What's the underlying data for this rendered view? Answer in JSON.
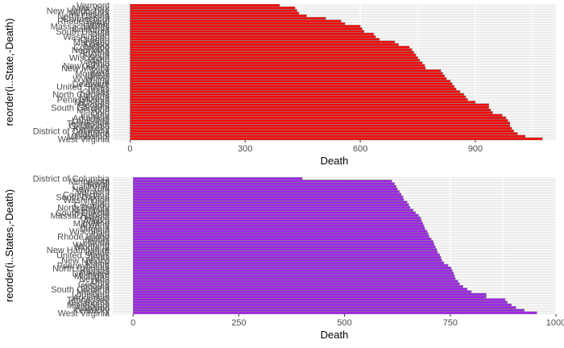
{
  "chart_data": [
    {
      "type": "bar",
      "orientation": "horizontal",
      "xlabel": "Death",
      "ylabel": "reorder(i..State,-Death)",
      "xlim": [
        -45,
        1110
      ],
      "xticks": [
        0,
        300,
        600,
        900
      ],
      "fill_color": "#FF0000",
      "outline_color": "#808080",
      "grid": true,
      "categories": [
        "West Virginia",
        "Mississippi",
        "Alabama",
        "District of Columbia",
        "Kentucky",
        "Oklahoma",
        "Tennessee",
        "Louisiana",
        "Arkansas",
        "Indiana",
        "Ohio",
        "Missouri",
        "South Carolina",
        "Georgia",
        "Michigan",
        "Pennsylvania",
        "Nevada",
        "North Carolina",
        "Kansas",
        "Texas",
        "United States",
        "Delaware",
        "Maine",
        "Wyoming",
        "Illinois",
        "Montana",
        "Iowa",
        "New Mexico",
        "New Jersey",
        "Virginia",
        "Idaho",
        "Wisconsin",
        "Florida",
        "Arizona",
        "Nebraska",
        "Colorado",
        "Alaska",
        "Maryland",
        "Oregon",
        "Washington",
        "Utah",
        "South Dakota",
        "California",
        "Massachusetts",
        "Hawaii",
        "Rhode Island",
        "Connecticut",
        "North Dakota",
        "Minnesota",
        "New Hampshire",
        "New York",
        "Vermont"
      ],
      "values": [
        1075,
        1030,
        1010,
        1000,
        995,
        990,
        990,
        985,
        980,
        970,
        945,
        940,
        935,
        935,
        900,
        880,
        875,
        870,
        860,
        850,
        845,
        840,
        835,
        825,
        820,
        815,
        810,
        770,
        768,
        762,
        755,
        750,
        745,
        740,
        735,
        728,
        700,
        690,
        650,
        640,
        635,
        610,
        605,
        600,
        560,
        550,
        510,
        460,
        440,
        435,
        430,
        390
      ]
    },
    {
      "type": "bar",
      "orientation": "horizontal",
      "xlabel": "Death",
      "ylabel": "reorder(i..States,-Death)",
      "xlim": [
        -48,
        1000
      ],
      "xticks": [
        0,
        250,
        500,
        750,
        1000
      ],
      "fill_color": "#A020F0",
      "outline_color": "#808080",
      "grid": true,
      "categories": [
        "West Virginia",
        "Kentucky",
        "Alabama",
        "Mississippi",
        "Oklahoma",
        "Tennessee",
        "Arkansas",
        "Louisiana",
        "Missouri",
        "South Carolina",
        "Indiana",
        "Georgia",
        "Ohio",
        "Nevada",
        "Michigan",
        "Delaware",
        "Kansas",
        "North Carolina",
        "Pennsylvania",
        "Maine",
        "New Mexico",
        "Texas",
        "United States",
        "Idaho",
        "New Hampshire",
        "Montana",
        "Wyoming",
        "Florida",
        "Illinois",
        "Rhode Island",
        "Iowa",
        "Wisconsin",
        "Virginia",
        "Arizona",
        "Maryland",
        "Alaska",
        "Oregon",
        "Massachusetts",
        "South Dakota",
        "Nebraska",
        "North Dakota",
        "Colorado",
        "Utah",
        "Washington",
        "South Dakota",
        "Connecticut",
        "Vermont",
        "New York",
        "California",
        "Hawaii",
        "Minnesota",
        "District of Columbia"
      ],
      "values": [
        955,
        925,
        905,
        895,
        885,
        880,
        835,
        835,
        800,
        790,
        780,
        772,
        768,
        762,
        760,
        758,
        755,
        752,
        745,
        735,
        730,
        728,
        725,
        720,
        718,
        715,
        712,
        710,
        705,
        700,
        698,
        695,
        690,
        688,
        685,
        682,
        680,
        675,
        668,
        662,
        655,
        652,
        648,
        640,
        638,
        634,
        630,
        625,
        622,
        618,
        612,
        400
      ]
    }
  ]
}
